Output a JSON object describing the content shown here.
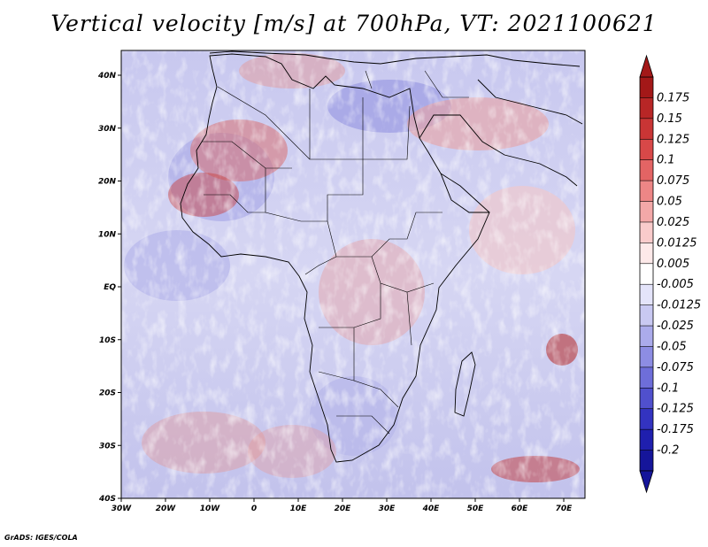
{
  "title": "Vertical velocity [m/s] at 700hPa, VT: 2021100621",
  "credit": "GrADS: IGES/COLA",
  "map": {
    "lat_labels": [
      "40N",
      "30N",
      "20N",
      "10N",
      "EQ",
      "10S",
      "20S",
      "30S",
      "40S"
    ],
    "lon_labels": [
      "30W",
      "20W",
      "10W",
      "0",
      "10E",
      "20E",
      "30E",
      "40E",
      "50E",
      "60E",
      "70E"
    ]
  },
  "colorbar": {
    "labels": [
      "0.175",
      "0.15",
      "0.125",
      "0.1",
      "0.075",
      "0.05",
      "0.025",
      "0.0125",
      "0.005",
      "-0.005",
      "-0.0125",
      "-0.025",
      "-0.05",
      "-0.075",
      "-0.1",
      "-0.125",
      "-0.175",
      "-0.2"
    ],
    "colors": [
      "#a31818",
      "#b82626",
      "#c93535",
      "#d84848",
      "#e36464",
      "#ed8686",
      "#f3a8a8",
      "#f9cbcb",
      "#fde9e9",
      "#ffffff",
      "#e4e4fa",
      "#c9c9f2",
      "#ababeb",
      "#8d8de3",
      "#6e6ed9",
      "#5050cd",
      "#3333c0",
      "#1f1fae",
      "#15159a"
    ]
  }
}
